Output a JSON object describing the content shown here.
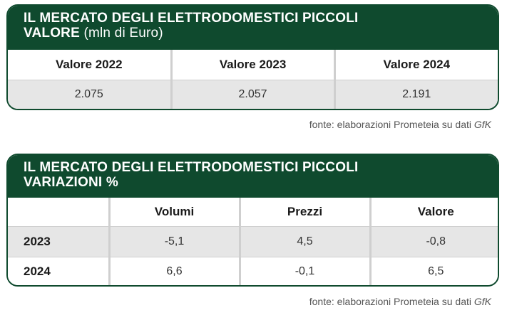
{
  "table1": {
    "title_line1": "IL MERCATO DEGLI ELETTRODOMESTICI PICCOLI",
    "title_line2_bold": "VALORE",
    "title_line2_thin": "(mln di Euro)",
    "headers": [
      "Valore 2022",
      "Valore 2023",
      "Valore 2024"
    ],
    "values": [
      "2.075",
      "2.057",
      "2.191"
    ],
    "source_text": "fonte: elaborazioni Prometeia su dati",
    "source_brand": "GfK"
  },
  "table2": {
    "title_line1": "IL MERCATO DEGLI ELETTRODOMESTICI PICCOLI",
    "title_line2": "VARIAZIONI %",
    "headers": [
      "",
      "Volumi",
      "Prezzi",
      "Valore"
    ],
    "rows": [
      {
        "year": "2023",
        "values": [
          "-5,1",
          "4,5",
          "-0,8"
        ]
      },
      {
        "year": "2024",
        "values": [
          "6,6",
          "-0,1",
          "6,5"
        ]
      }
    ],
    "source_text": "fonte: elaborazioni Prometeia su dati",
    "source_brand": "GfK"
  },
  "colors": {
    "header_green": "#0f4a2e",
    "row_grey": "#e6e6e6",
    "divider_grey": "#cfcfcf"
  }
}
